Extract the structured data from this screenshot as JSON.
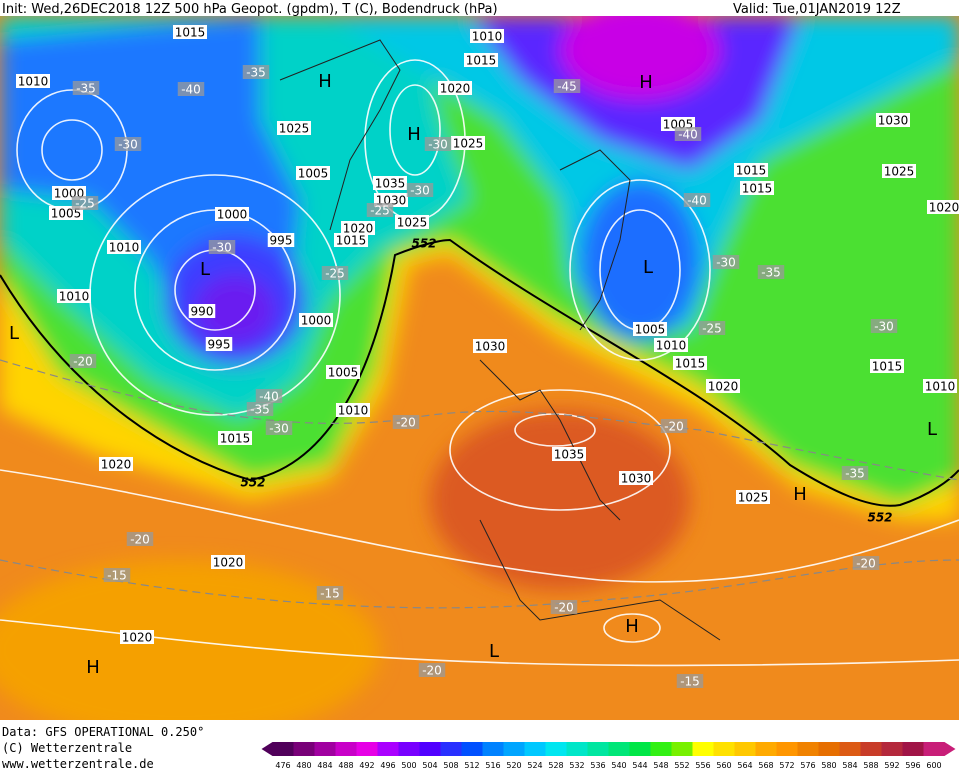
{
  "header": {
    "init": "Init: Wed,26DEC2018 12Z 500 hPa Geopot. (gpdm), T (C), Bodendruck (hPa)",
    "valid": "Valid: Tue,01JAN2019 12Z"
  },
  "footer": {
    "data": "Data: GFS OPERATIONAL 0.250°",
    "copyright": "(C) Wetterzentrale",
    "url": "www.wetterzentrale.de"
  },
  "isobar_labels": [
    "1015",
    "1010",
    "1015",
    "1010",
    "1020",
    "1025",
    "1005",
    "1030",
    "1025",
    "1005",
    "1035",
    "1015",
    "1015",
    "1025",
    "1000",
    "1030",
    "1005",
    "1000",
    "1020",
    "1025",
    "1020",
    "995",
    "1015",
    "1010",
    "1010",
    "990",
    "1000",
    "1005",
    "1010",
    "995",
    "1030",
    "1015",
    "1005",
    "1020",
    "1015",
    "1010",
    "1010",
    "1015",
    "1035",
    "1020",
    "1030",
    "1025",
    "1020",
    "1020"
  ],
  "temperature_labels": [
    "-35",
    "-35",
    "-40",
    "-45",
    "-30",
    "-40",
    "-30",
    "-25",
    "-30",
    "-25",
    "-40",
    "-30",
    "-30",
    "-35",
    "-25",
    "-25",
    "-30",
    "-20",
    "-40",
    "-35",
    "-30",
    "-20",
    "-20",
    "-35",
    "-20",
    "-20",
    "-15",
    "-15",
    "-20",
    "-20",
    "-15"
  ],
  "height_labels": [
    "552",
    "552",
    "552"
  ],
  "pressure_centers": [
    "H",
    "H",
    "H",
    "H",
    "H",
    "H",
    "L",
    "L",
    "L",
    "L",
    "L"
  ],
  "colorbar": {
    "ticks": [
      476,
      480,
      484,
      488,
      492,
      496,
      500,
      504,
      508,
      512,
      516,
      520,
      524,
      528,
      532,
      536,
      540,
      544,
      548,
      552,
      556,
      560,
      564,
      568,
      572,
      576,
      580,
      584,
      588,
      592,
      596,
      600
    ],
    "colors": [
      "#50005a",
      "#780078",
      "#a000a0",
      "#c800c8",
      "#e600e6",
      "#aa00ff",
      "#7800ff",
      "#5000ff",
      "#2830ff",
      "#0050ff",
      "#0082ff",
      "#00a5ff",
      "#00c8ff",
      "#00e6f0",
      "#00e6c8",
      "#00e6a0",
      "#00e678",
      "#00e646",
      "#32f014",
      "#78f000",
      "#ffff00",
      "#ffe100",
      "#ffc800",
      "#ffaa00",
      "#ff9600",
      "#f08200",
      "#e66e00",
      "#dc5a14",
      "#c83c28",
      "#b4283c",
      "#a01446",
      "#c81e78"
    ]
  }
}
